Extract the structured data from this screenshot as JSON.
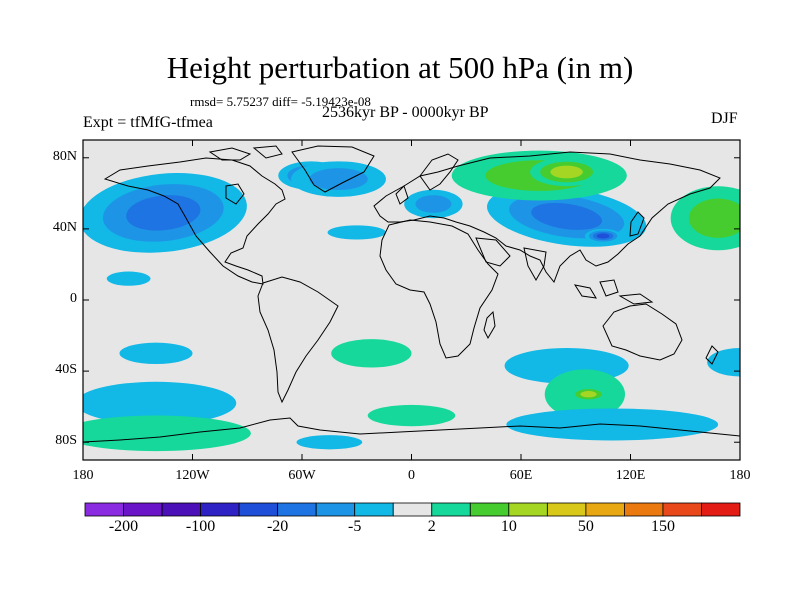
{
  "title": "Height perturbation at 500 hPa (in m)",
  "stats_line": "rmsd= 5.75237 diff= -5.19423e-08",
  "period": "2536kyr BP - 0000kyr BP",
  "experiment": "Expt = tfMfG-tfmea",
  "season": "DJF",
  "axes": {
    "lat_labels": [
      "80N",
      "40N",
      "0",
      "40S",
      "80S"
    ],
    "lat_values": [
      80,
      40,
      0,
      -40,
      -80
    ],
    "lon_labels": [
      "180",
      "120W",
      "60W",
      "0",
      "60E",
      "120E",
      "180"
    ],
    "lon_values": [
      -180,
      -120,
      -60,
      0,
      60,
      120,
      180
    ],
    "lat_range": [
      -90,
      90
    ],
    "lon_range": [
      -180,
      180
    ]
  },
  "colorbar": {
    "colors": [
      "#8a2be2",
      "#6a16c8",
      "#4b10b8",
      "#2e22c4",
      "#1e4fd8",
      "#1d74e2",
      "#1e94e6",
      "#12b8e6",
      "#e6e6e6",
      "#16d89a",
      "#46cc2e",
      "#a6d624",
      "#d8c81a",
      "#e8a814",
      "#ea7a10",
      "#e8481a",
      "#e41c16"
    ],
    "labels": [
      "-200",
      "-100",
      "-20",
      "-5",
      "2",
      "10",
      "50",
      "150"
    ],
    "label_boundaries": [
      1,
      3,
      5,
      7,
      9,
      11,
      13,
      15
    ]
  },
  "anomalies": [
    {
      "lon": -136,
      "lat": 49,
      "rx": 46,
      "ry": 22,
      "level": -3,
      "rot": -6
    },
    {
      "lon": -55,
      "lat": 70,
      "rx": 18,
      "ry": 8,
      "level": -3,
      "rot": 0
    },
    {
      "lon": -40,
      "lat": 68,
      "rx": 26,
      "ry": 10,
      "level": -2,
      "rot": 0
    },
    {
      "lon": 85,
      "lat": 47,
      "rx": 44,
      "ry": 16,
      "level": -3,
      "rot": 8
    },
    {
      "lon": 105,
      "lat": 36,
      "rx": 10,
      "ry": 4,
      "level": -4,
      "rot": 0
    },
    {
      "lon": 12,
      "lat": 54,
      "rx": 16,
      "ry": 8,
      "level": -2,
      "rot": 0
    },
    {
      "lon": 70,
      "lat": 70,
      "rx": 48,
      "ry": 14,
      "level": 2,
      "rot": 0
    },
    {
      "lon": 85,
      "lat": 72,
      "rx": 20,
      "ry": 8,
      "level": 3,
      "rot": 0
    },
    {
      "lon": 168,
      "lat": 46,
      "rx": 26,
      "ry": 18,
      "level": 2,
      "rot": 0
    },
    {
      "lon": -30,
      "lat": 38,
      "rx": 16,
      "ry": 4,
      "level": -1,
      "rot": 0
    },
    {
      "lon": -155,
      "lat": 12,
      "rx": 12,
      "ry": 4,
      "level": -1,
      "rot": 0
    },
    {
      "lon": -140,
      "lat": -30,
      "rx": 20,
      "ry": 6,
      "level": -1,
      "rot": 0
    },
    {
      "lon": -22,
      "lat": -30,
      "rx": 22,
      "ry": 8,
      "level": 1,
      "rot": 0
    },
    {
      "lon": 85,
      "lat": -37,
      "rx": 34,
      "ry": 10,
      "level": -1,
      "rot": 0
    },
    {
      "lon": 180,
      "lat": -35,
      "rx": 18,
      "ry": 8,
      "level": -1,
      "rot": 0
    },
    {
      "lon": 95,
      "lat": -53,
      "rx": 22,
      "ry": 14,
      "level": 1,
      "rot": 0
    },
    {
      "lon": 97,
      "lat": -53,
      "rx": 10,
      "ry": 4,
      "level": 3,
      "rot": 0
    },
    {
      "lon": -140,
      "lat": -58,
      "rx": 44,
      "ry": 12,
      "level": -1,
      "rot": 0
    },
    {
      "lon": -140,
      "lat": -75,
      "rx": 52,
      "ry": 10,
      "level": 1,
      "rot": 0
    },
    {
      "lon": 0,
      "lat": -65,
      "rx": 24,
      "ry": 6,
      "level": 1,
      "rot": 0
    },
    {
      "lon": 110,
      "lat": -70,
      "rx": 58,
      "ry": 9,
      "level": -1,
      "rot": 0
    },
    {
      "lon": -45,
      "lat": -80,
      "rx": 18,
      "ry": 4,
      "level": -1,
      "rot": 0
    }
  ]
}
